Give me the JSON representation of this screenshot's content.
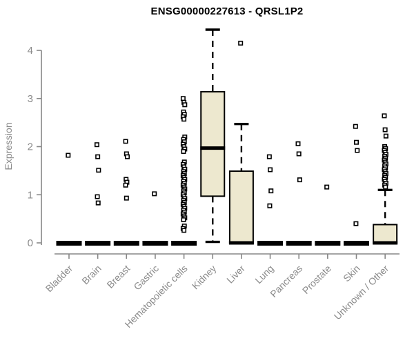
{
  "colors": {
    "box_fill": "#ede8cf",
    "box_stroke": "#000000",
    "median": "#000000",
    "outlier_stroke": "#000000",
    "outlier_fill": "#ffffff",
    "axis": "#878787",
    "tick_label": "#8a8a8a",
    "title": "#000000",
    "background": "#ffffff"
  },
  "chart_data": {
    "type": "boxplot",
    "title": "ENSG00000227613 - QRSL1P2",
    "xlabel": "",
    "ylabel": "Expression",
    "ylim": [
      0,
      4
    ],
    "yticks": [
      0,
      1,
      2,
      3,
      4
    ],
    "grid": false,
    "legend": "none",
    "categories": [
      "Bladder",
      "Brain",
      "Breast",
      "Gastric",
      "Hematopoietic cells",
      "Kidney",
      "Liver",
      "Lung",
      "Pancreas",
      "Prostate",
      "Skin",
      "Unknown / Other"
    ],
    "series": [
      {
        "name": "Bladder",
        "q1": 0,
        "median": 0,
        "q3": 0,
        "whisker_low": 0,
        "whisker_high": 0,
        "outliers": [
          1.82
        ]
      },
      {
        "name": "Brain",
        "q1": 0,
        "median": 0,
        "q3": 0,
        "whisker_low": 0,
        "whisker_high": 0,
        "outliers": [
          2.04,
          1.79,
          1.51,
          0.96,
          0.83
        ]
      },
      {
        "name": "Breast",
        "q1": 0,
        "median": 0,
        "q3": 0,
        "whisker_low": 0,
        "whisker_high": 0,
        "outliers": [
          2.11,
          1.85,
          1.79,
          1.32,
          1.26,
          1.2,
          0.93
        ]
      },
      {
        "name": "Gastric",
        "q1": 0,
        "median": 0,
        "q3": 0,
        "whisker_low": 0,
        "whisker_high": 0,
        "outliers": [
          1.02
        ]
      },
      {
        "name": "Hematopoietic cells",
        "q1": 0,
        "median": 0,
        "q3": 0,
        "whisker_low": 0,
        "whisker_high": 0,
        "outliers": [
          3.0,
          2.92,
          2.87,
          2.72,
          2.67,
          2.62,
          2.57,
          2.2,
          2.15,
          2.1,
          2.05,
          2.0,
          1.95,
          1.9,
          1.68,
          1.63,
          1.58,
          1.53,
          1.48,
          1.44,
          1.4,
          1.36,
          1.32,
          1.28,
          1.24,
          1.2,
          1.16,
          1.12,
          1.08,
          1.04,
          1.0,
          0.96,
          0.92,
          0.88,
          0.84,
          0.8,
          0.76,
          0.72,
          0.68,
          0.64,
          0.6,
          0.56,
          0.52,
          0.48,
          0.35,
          0.3,
          0.26
        ]
      },
      {
        "name": "Kidney",
        "q1": 0.97,
        "median": 1.97,
        "q3": 3.14,
        "whisker_low": 0.02,
        "whisker_high": 4.43,
        "outliers": []
      },
      {
        "name": "Liver",
        "q1": 0,
        "median": 0,
        "q3": 1.49,
        "whisker_low": 0,
        "whisker_high": 2.47,
        "outliers": [
          4.15
        ]
      },
      {
        "name": "Lung",
        "q1": 0,
        "median": 0,
        "q3": 0,
        "whisker_low": 0,
        "whisker_high": 0,
        "outliers": [
          1.79,
          1.52,
          1.08,
          0.77
        ]
      },
      {
        "name": "Pancreas",
        "q1": 0,
        "median": 0,
        "q3": 0,
        "whisker_low": 0,
        "whisker_high": 0,
        "outliers": [
          2.06,
          1.85,
          1.31
        ]
      },
      {
        "name": "Prostate",
        "q1": 0,
        "median": 0,
        "q3": 0,
        "whisker_low": 0,
        "whisker_high": 0,
        "outliers": [
          1.16
        ]
      },
      {
        "name": "Skin",
        "q1": 0,
        "median": 0,
        "q3": 0,
        "whisker_low": 0,
        "whisker_high": 0,
        "outliers": [
          2.42,
          2.09,
          1.92,
          0.4
        ]
      },
      {
        "name": "Unknown / Other",
        "q1": 0,
        "median": 0,
        "q3": 0.38,
        "whisker_low": 0,
        "whisker_high": 1.1,
        "outliers": [
          2.64,
          2.35,
          2.22,
          2.0,
          1.96,
          1.92,
          1.88,
          1.84,
          1.8,
          1.76,
          1.72,
          1.68,
          1.64,
          1.6,
          1.56,
          1.52,
          1.48,
          1.44,
          1.4,
          1.36,
          1.32,
          1.28,
          1.24,
          1.2,
          1.16
        ]
      }
    ]
  }
}
